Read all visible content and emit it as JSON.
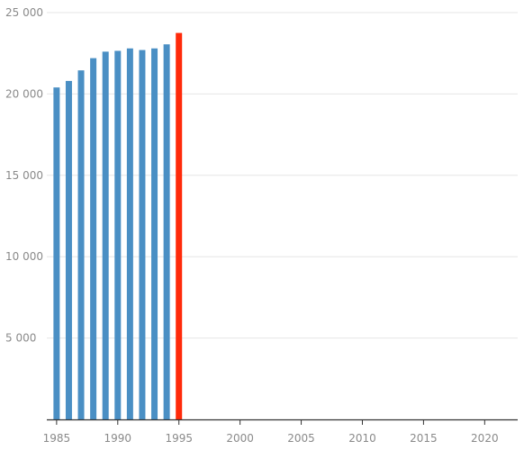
{
  "chart_data": {
    "type": "bar",
    "x": [
      1985,
      1986,
      1987,
      1988,
      1989,
      1990,
      1991,
      1992,
      1993,
      1994,
      1995
    ],
    "values": [
      20400,
      20800,
      21450,
      22200,
      22600,
      22650,
      22800,
      22700,
      22800,
      23050,
      23750
    ],
    "highlight_index": 10,
    "colors": {
      "bar": "#4a8fc4",
      "highlight": "#ff2a0a"
    },
    "ylim": [
      0,
      25000
    ],
    "xlim": [
      1984.2,
      2022.7
    ],
    "y_ticks": [
      5000,
      10000,
      15000,
      20000,
      25000
    ],
    "y_tick_labels": [
      "5 000",
      "10 000",
      "15 000",
      "20 000",
      "25 000"
    ],
    "x_ticks": [
      1985,
      1990,
      1995,
      2000,
      2005,
      2010,
      2015,
      2020
    ],
    "x_tick_labels": [
      "1985",
      "1990",
      "1995",
      "2000",
      "2005",
      "2010",
      "2015",
      "2020"
    ],
    "title": "",
    "xlabel": "",
    "ylabel": "",
    "grid": true
  }
}
